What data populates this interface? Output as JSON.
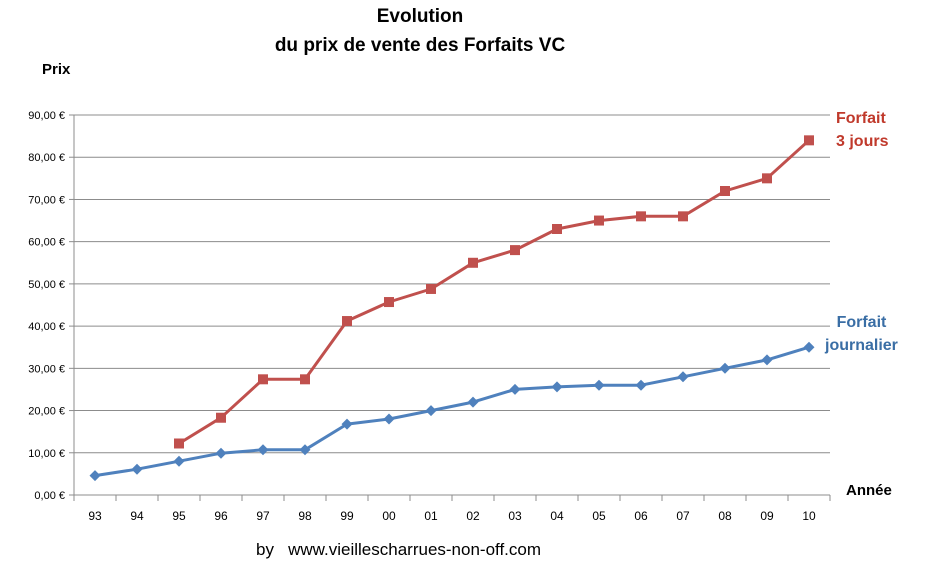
{
  "chart_data": {
    "type": "line",
    "title": "Evolution",
    "subtitle": "du prix de vente des Forfaits VC",
    "xlabel": "Année",
    "ylabel": "Prix",
    "categories": [
      "93",
      "94",
      "95",
      "96",
      "97",
      "98",
      "99",
      "00",
      "01",
      "02",
      "03",
      "04",
      "05",
      "06",
      "07",
      "08",
      "09",
      "10"
    ],
    "yticks": [
      "0,00 €",
      "10,00 €",
      "20,00 €",
      "30,00 €",
      "40,00 €",
      "50,00 €",
      "60,00 €",
      "70,00 €",
      "80,00 €",
      "90,00 €"
    ],
    "ylim": [
      0,
      90
    ],
    "grid": true,
    "legend": "inline labels at right end of each series",
    "series": [
      {
        "name": "Forfait 3 jours",
        "name_lines": [
          "Forfait",
          "3 jours"
        ],
        "color": "#c0504d",
        "marker": "square",
        "values": [
          null,
          null,
          12.2,
          18.3,
          27.4,
          27.4,
          41.2,
          45.7,
          48.8,
          55,
          58,
          63,
          65,
          66,
          66,
          72,
          75,
          84
        ]
      },
      {
        "name": "Forfait journalier",
        "name_lines": [
          "Forfait",
          "journalier"
        ],
        "color": "#4f81bd",
        "marker": "diamond",
        "values": [
          4.6,
          6.1,
          8.0,
          9.9,
          10.7,
          10.7,
          16.8,
          18.0,
          20.0,
          22.0,
          25.0,
          25.6,
          26.0,
          26.0,
          28.0,
          30.0,
          32.0,
          35.0
        ]
      }
    ],
    "footer": "by   www.vieillescharrues-non-off.com"
  }
}
